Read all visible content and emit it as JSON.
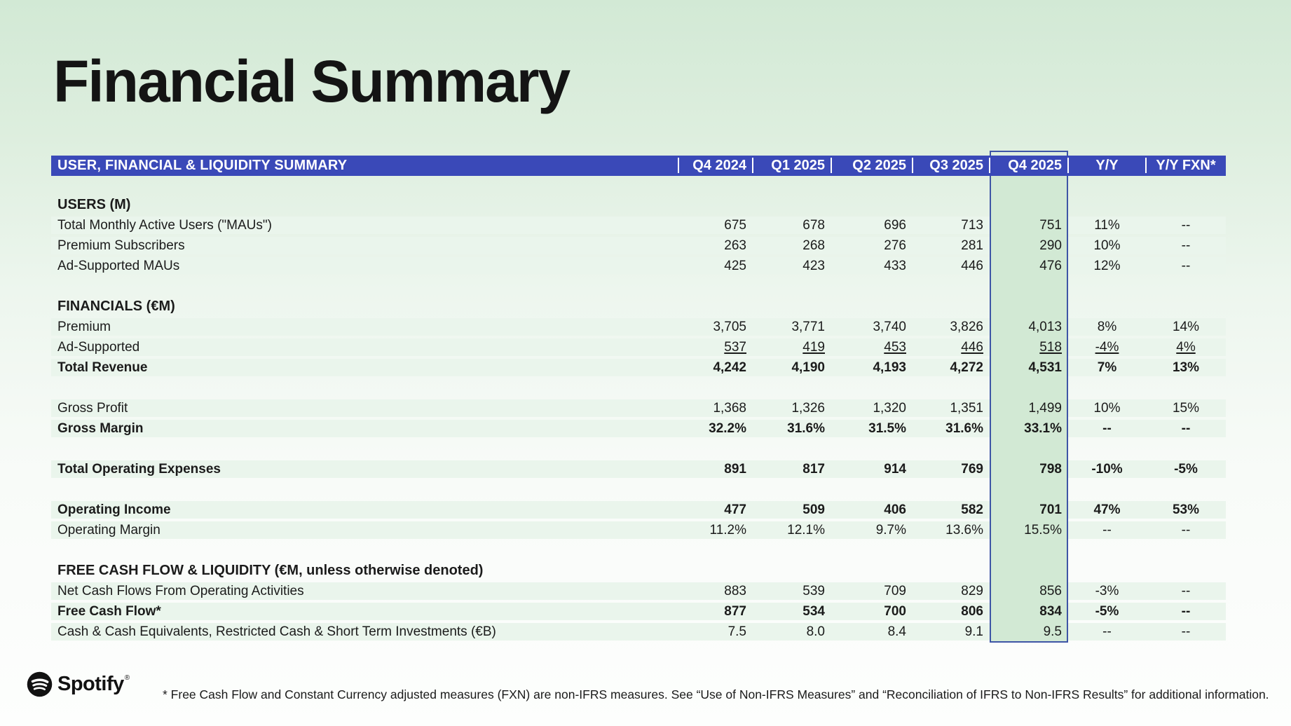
{
  "page": {
    "title": "Financial Summary",
    "footnote": "* Free Cash Flow and Constant Currency adjusted measures (FXN) are non-IFRS measures. See “Use of Non-IFRS Measures” and “Reconciliation of IFRS to Non-IFRS Results” for additional information.",
    "brand": {
      "logo_icon": "spotify-icon",
      "wordmark": "Spotify",
      "trademark": "®"
    },
    "colors": {
      "header_blue": "#3a49b8",
      "highlight_green": "#d2e9d4",
      "highlight_border_blue": "#3e55a6",
      "row_stripe_green": "#eaf5ec",
      "background_top_green": "#d2e9d5"
    }
  },
  "table": {
    "header": {
      "title": "USER, FINANCIAL & LIQUIDITY SUMMARY",
      "columns": [
        "Q4 2024",
        "Q1 2025",
        "Q2 2025",
        "Q3 2025",
        "Q4 2025",
        "Y/Y",
        "Y/Y FXN*"
      ],
      "highlighted_column": "Q4 2025"
    },
    "rows": [
      {
        "type": "spacer"
      },
      {
        "type": "section",
        "label": "USERS (M)"
      },
      {
        "type": "data",
        "label": "Total Monthly Active Users (\"MAUs\")",
        "values": [
          "675",
          "678",
          "696",
          "713",
          "751",
          "11%",
          "--"
        ]
      },
      {
        "type": "data",
        "label": "Premium Subscribers",
        "values": [
          "263",
          "268",
          "276",
          "281",
          "290",
          "10%",
          "--"
        ]
      },
      {
        "type": "data",
        "label": "Ad-Supported MAUs",
        "values": [
          "425",
          "423",
          "433",
          "446",
          "476",
          "12%",
          "--"
        ]
      },
      {
        "type": "spacer"
      },
      {
        "type": "section",
        "label": "FINANCIALS (€M)"
      },
      {
        "type": "data",
        "label": "Premium",
        "values": [
          "3,705",
          "3,771",
          "3,740",
          "3,826",
          "4,013",
          "8%",
          "14%"
        ]
      },
      {
        "type": "data",
        "underline": true,
        "label": "Ad-Supported",
        "values": [
          "537",
          "419",
          "453",
          "446",
          "518",
          "-4%",
          "4%"
        ]
      },
      {
        "type": "data",
        "bold": true,
        "label": "Total Revenue",
        "values": [
          "4,242",
          "4,190",
          "4,193",
          "4,272",
          "4,531",
          "7%",
          "13%"
        ]
      },
      {
        "type": "spacer"
      },
      {
        "type": "data",
        "label": "Gross Profit",
        "values": [
          "1,368",
          "1,326",
          "1,320",
          "1,351",
          "1,499",
          "10%",
          "15%"
        ]
      },
      {
        "type": "data",
        "bold": true,
        "label": "Gross Margin",
        "values": [
          "32.2%",
          "31.6%",
          "31.5%",
          "31.6%",
          "33.1%",
          "--",
          "--"
        ]
      },
      {
        "type": "spacer"
      },
      {
        "type": "data",
        "bold": true,
        "label": "Total Operating Expenses",
        "values": [
          "891",
          "817",
          "914",
          "769",
          "798",
          "-10%",
          "-5%"
        ]
      },
      {
        "type": "spacer"
      },
      {
        "type": "data",
        "bold": true,
        "label": "Operating Income",
        "values": [
          "477",
          "509",
          "406",
          "582",
          "701",
          "47%",
          "53%"
        ]
      },
      {
        "type": "data",
        "label": "Operating Margin",
        "values": [
          "11.2%",
          "12.1%",
          "9.7%",
          "13.6%",
          "15.5%",
          "--",
          "--"
        ]
      },
      {
        "type": "spacer"
      },
      {
        "type": "section",
        "label": "FREE CASH FLOW & LIQUIDITY (€M, unless otherwise denoted)"
      },
      {
        "type": "data",
        "label": "Net Cash Flows From Operating Activities",
        "values": [
          "883",
          "539",
          "709",
          "829",
          "856",
          "-3%",
          "--"
        ]
      },
      {
        "type": "data",
        "bold": true,
        "label": "Free Cash Flow*",
        "values": [
          "877",
          "534",
          "700",
          "806",
          "834",
          "-5%",
          "--"
        ]
      },
      {
        "type": "data",
        "label": "Cash & Cash Equivalents, Restricted Cash & Short Term Investments (€B)",
        "values": [
          "7.5",
          "8.0",
          "8.4",
          "9.1",
          "9.5",
          "--",
          "--"
        ]
      }
    ]
  }
}
